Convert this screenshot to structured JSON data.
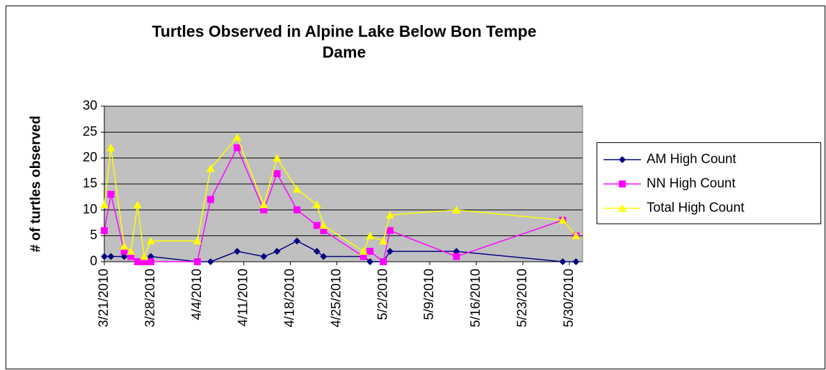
{
  "chart_data": {
    "type": "line",
    "title": "Turtles Observed in Alpine Lake Below Bon Tempe Dame",
    "y_label": "# of turtles observed",
    "x": [
      "2010-03-21",
      "2010-03-22",
      "2010-03-24",
      "2010-03-25",
      "2010-03-26",
      "2010-03-27",
      "2010-03-28",
      "2010-04-04",
      "2010-04-06",
      "2010-04-10",
      "2010-04-14",
      "2010-04-16",
      "2010-04-19",
      "2010-04-22",
      "2010-04-23",
      "2010-04-29",
      "2010-04-30",
      "2010-05-02",
      "2010-05-03",
      "2010-05-13",
      "2010-05-29",
      "2010-05-31"
    ],
    "series": [
      {
        "name": "AM High Count",
        "color": "#000080",
        "marker": "diamond",
        "values": [
          1,
          1,
          1,
          1,
          0,
          0,
          1,
          0,
          0,
          2,
          1,
          2,
          4,
          2,
          1,
          1,
          0,
          0,
          2,
          2,
          0,
          0
        ]
      },
      {
        "name": "NN High Count",
        "color": "#ff00ff",
        "marker": "square",
        "values": [
          6,
          13,
          2,
          1,
          0,
          0,
          0,
          0,
          12,
          22,
          10,
          17,
          10,
          7,
          6,
          1,
          2,
          0,
          6,
          1,
          8,
          5
        ]
      },
      {
        "name": "Total High Count",
        "color": "#ffff00",
        "marker": "triangle",
        "values": [
          11,
          22,
          3,
          2,
          11,
          1,
          4,
          4,
          18,
          24,
          11,
          20,
          14,
          11,
          7,
          2,
          5,
          4,
          9,
          10,
          8,
          5
        ]
      }
    ],
    "xlim": [
      "2010-03-21",
      "2010-06-01"
    ],
    "xticks": [
      {
        "value": "2010-03-21",
        "label": "3/21/2010"
      },
      {
        "value": "2010-03-28",
        "label": "3/28/2010"
      },
      {
        "value": "2010-04-04",
        "label": "4/4/2010"
      },
      {
        "value": "2010-04-11",
        "label": "4/11/2010"
      },
      {
        "value": "2010-04-18",
        "label": "4/18/2010"
      },
      {
        "value": "2010-04-25",
        "label": "4/25/2010"
      },
      {
        "value": "2010-05-02",
        "label": "5/2/2010"
      },
      {
        "value": "2010-05-09",
        "label": "5/9/2010"
      },
      {
        "value": "2010-05-16",
        "label": "5/16/2010"
      },
      {
        "value": "2010-05-23",
        "label": "5/23/2010"
      },
      {
        "value": "2010-05-30",
        "label": "5/30/2010"
      }
    ],
    "ylim": [
      0,
      30
    ],
    "yticks": [
      0,
      5,
      10,
      15,
      20,
      25,
      30
    ],
    "grid": true,
    "legend": "right"
  }
}
